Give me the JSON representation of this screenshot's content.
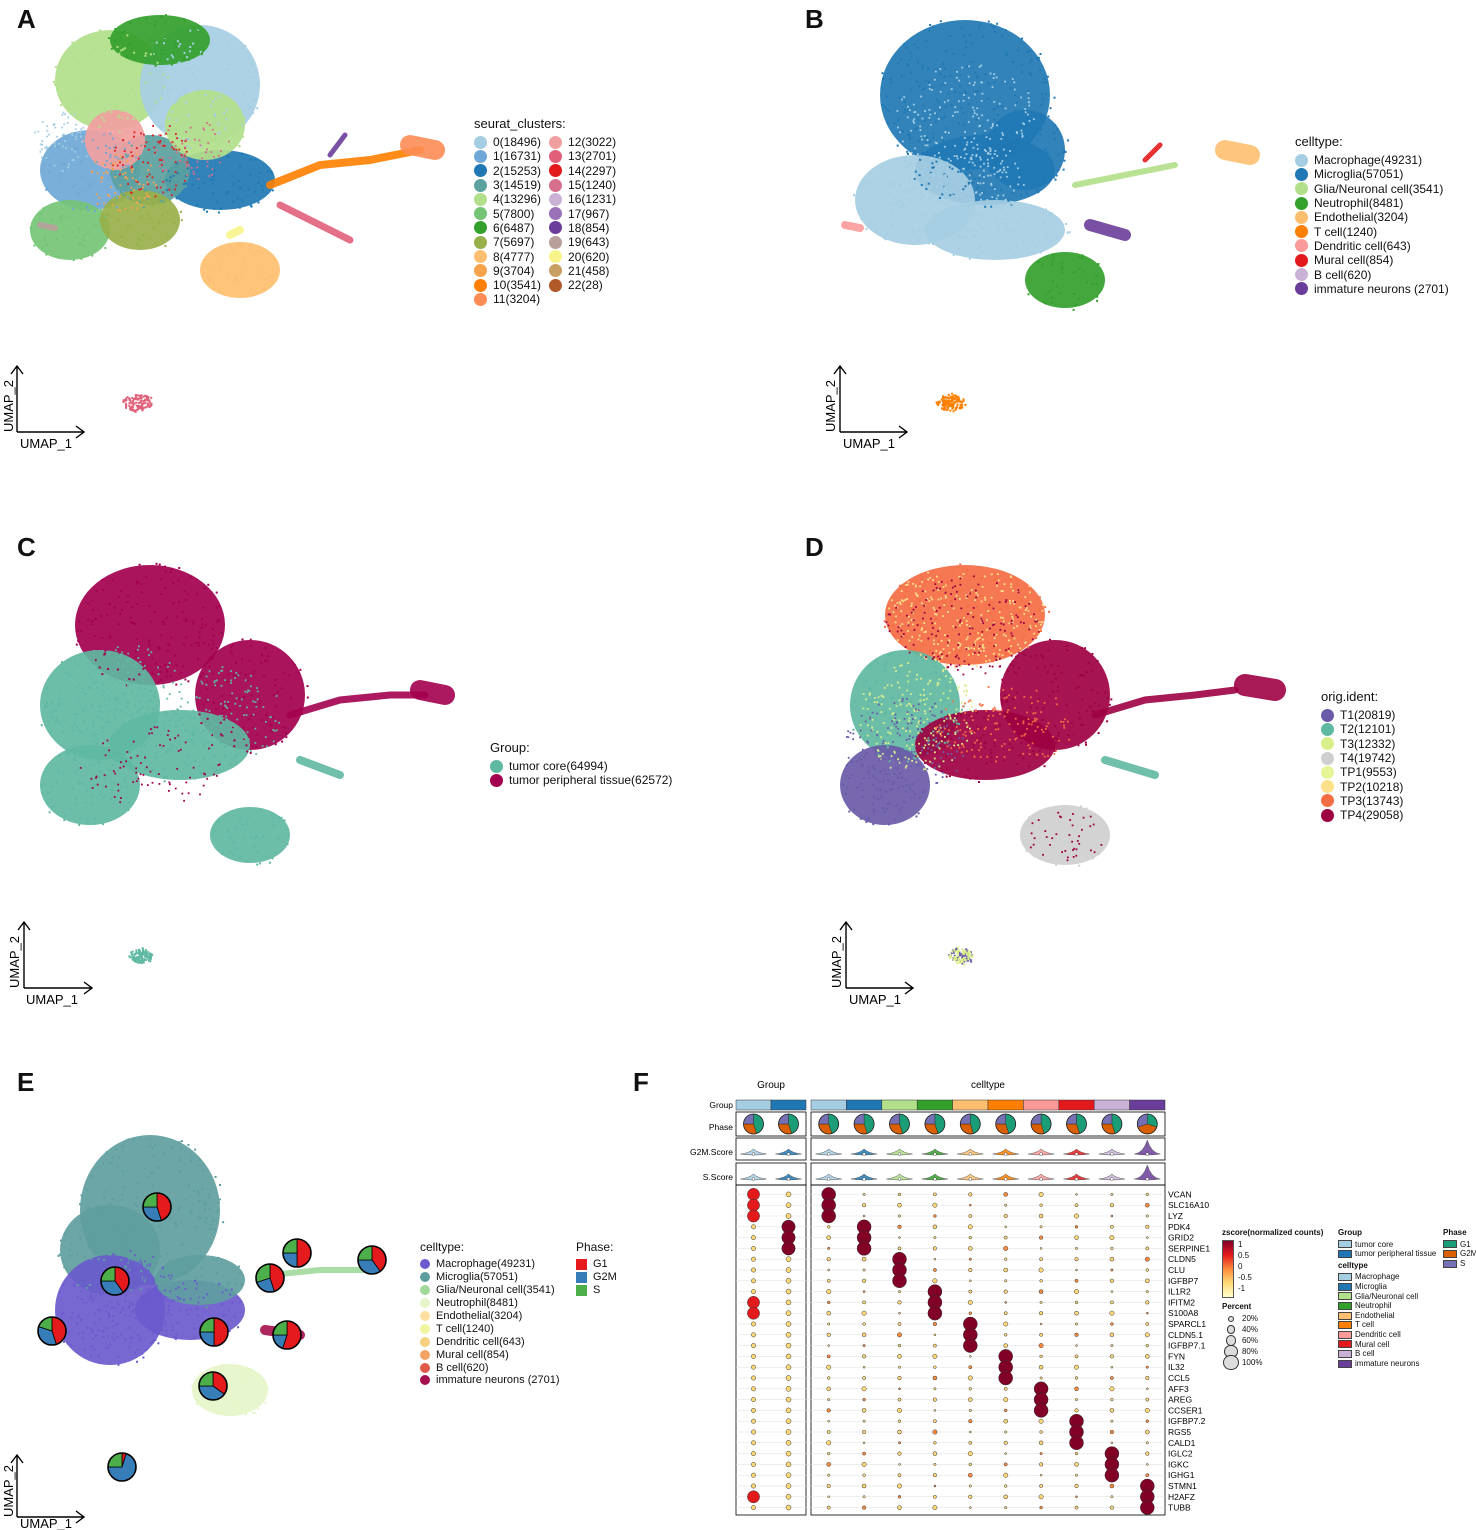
{
  "panels": {
    "A": "A",
    "B": "B",
    "C": "C",
    "D": "D",
    "E": "E",
    "F": "F"
  },
  "axes": {
    "x": "UMAP_1",
    "y": "UMAP_2"
  },
  "colors": {
    "celltypeB": [
      "#a6cee3",
      "#1f78b4",
      "#b2df8a",
      "#33a02c",
      "#fdbf6f",
      "#ff7f00",
      "#fb9a99",
      "#e31a1c",
      "#cab2d6",
      "#6a3d9a"
    ],
    "clusters": [
      "#a6cee3",
      "#6fa8d6",
      "#1f78b4",
      "#5aa1a0",
      "#b2df8a",
      "#74c476",
      "#33a02c",
      "#98b04a",
      "#fdbf6f",
      "#f9a24c",
      "#ff7f00",
      "#fd8d55",
      "#f1a0a0",
      "#e0607a",
      "#e31a1c",
      "#d66f8b",
      "#cab2d6",
      "#9a71b6",
      "#6a3d9a",
      "#b8a09a",
      "#f7f48a",
      "#c9a063",
      "#b15928"
    ],
    "group": [
      "#5fb8a2",
      "#a3004f"
    ],
    "orig": [
      "#6a5aa8",
      "#5fb8a2",
      "#d9ef8b",
      "#cfcfcf",
      "#e6f598",
      "#fee08b",
      "#f46d43",
      "#9e0142"
    ],
    "celltypeE": [
      "#6a5acd",
      "#5f9ea0",
      "#a1d99b",
      "#e6f5c9",
      "#fde0a0",
      "#f0f4a0",
      "#f5d080",
      "#f4a462",
      "#e05a47",
      "#a50f4d"
    ],
    "phase": [
      "#e41a1c",
      "#377eb8",
      "#4daf4a"
    ],
    "groupF": [
      "#a6cee3",
      "#1f78b4"
    ],
    "zscale": [
      "#ffffcc",
      "#fed976",
      "#fd8d3c",
      "#e31a1c",
      "#800026"
    ]
  },
  "legendA": {
    "title": "seurat_clusters:",
    "items": [
      "0(18496)",
      "1(16731)",
      "2(15253)",
      "3(14519)",
      "4(13296)",
      "5(7800)",
      "6(6487)",
      "7(5697)",
      "8(4777)",
      "9(3704)",
      "10(3541)",
      "11(3204)",
      "12(3022)",
      "13(2701)",
      "14(2297)",
      "15(1240)",
      "16(1231)",
      "17(967)",
      "18(854)",
      "19(643)",
      "20(620)",
      "21(458)",
      "22(28)"
    ]
  },
  "legendB": {
    "title": "celltype:",
    "items": [
      "Macrophage(49231)",
      "Microglia(57051)",
      "Glia/Neuronal cell(3541)",
      "Neutrophil(8481)",
      "Endothelial(3204)",
      "T cell(1240)",
      "Dendritic cell(643)",
      "Mural cell(854)",
      "B cell(620)",
      " immature neurons (2701)"
    ]
  },
  "legendC": {
    "title": "Group:",
    "items": [
      "tumor core(64994)",
      "tumor peripheral tissue(62572)"
    ]
  },
  "legendD": {
    "title": "orig.ident:",
    "items": [
      "T1(20819)",
      "T2(12101)",
      "T3(12332)",
      "T4(19742)",
      "TP1(9553)",
      "TP2(10218)",
      "TP3(13743)",
      "TP4(29058)"
    ]
  },
  "legendE": {
    "title": "celltype:",
    "items": [
      "Macrophage(49231)",
      "Microglia(57051)",
      "Glia/Neuronal cell(3541)",
      "Neutrophil(8481)",
      "Endothelial(3204)",
      "T cell(1240)",
      "Dendritic cell(643)",
      "Mural cell(854)",
      "B cell(620)",
      " immature neurons (2701)"
    ]
  },
  "legendPhase": {
    "title": "Phase:",
    "items": [
      "G1",
      "G2M",
      "S"
    ]
  },
  "chart_data": [
    {
      "type": "scatter",
      "panel": "A",
      "title": "",
      "xlabel": "UMAP_1",
      "ylabel": "UMAP_2",
      "legend_title": "seurat_clusters:",
      "categories": [
        "0",
        "1",
        "2",
        "3",
        "4",
        "5",
        "6",
        "7",
        "8",
        "9",
        "10",
        "11",
        "12",
        "13",
        "14",
        "15",
        "16",
        "17",
        "18",
        "19",
        "20",
        "21",
        "22"
      ],
      "cell_counts": [
        18496,
        16731,
        15253,
        14519,
        13296,
        7800,
        6487,
        5697,
        4777,
        3704,
        3541,
        3204,
        3022,
        2701,
        2297,
        1240,
        1231,
        967,
        854,
        643,
        620,
        458,
        28
      ]
    },
    {
      "type": "scatter",
      "panel": "B",
      "xlabel": "UMAP_1",
      "ylabel": "UMAP_2",
      "legend_title": "celltype:",
      "categories": [
        "Macrophage",
        "Microglia",
        "Glia/Neuronal cell",
        "Neutrophil",
        "Endothelial",
        "T cell",
        "Dendritic cell",
        "Mural cell",
        "B cell",
        "immature neurons"
      ],
      "cell_counts": [
        49231,
        57051,
        3541,
        8481,
        3204,
        1240,
        643,
        854,
        620,
        2701
      ]
    },
    {
      "type": "scatter",
      "panel": "C",
      "xlabel": "UMAP_1",
      "ylabel": "UMAP_2",
      "legend_title": "Group:",
      "categories": [
        "tumor core",
        "tumor peripheral tissue"
      ],
      "cell_counts": [
        64994,
        62572
      ]
    },
    {
      "type": "scatter",
      "panel": "D",
      "xlabel": "UMAP_1",
      "ylabel": "UMAP_2",
      "legend_title": "orig.ident:",
      "categories": [
        "T1",
        "T2",
        "T3",
        "T4",
        "TP1",
        "TP2",
        "TP3",
        "TP4"
      ],
      "cell_counts": [
        20819,
        12101,
        12332,
        19742,
        9553,
        10218,
        13743,
        29058
      ]
    },
    {
      "type": "scatter",
      "panel": "E",
      "xlabel": "UMAP_1",
      "ylabel": "UMAP_2",
      "legend_title": "celltype:",
      "phase_legend": [
        "G1",
        "G2M",
        "S"
      ],
      "pies": [
        {
          "celltype": "Microglia",
          "G1": 0.45,
          "G2M": 0.3,
          "S": 0.25
        },
        {
          "celltype": "Macrophage",
          "G1": 0.4,
          "G2M": 0.35,
          "S": 0.25
        },
        {
          "celltype": "Glia/Neuronal cell",
          "G1": 0.5,
          "G2M": 0.25,
          "S": 0.25
        },
        {
          "celltype": "Endothelial",
          "G1": 0.45,
          "G2M": 0.25,
          "S": 0.3
        },
        {
          "celltype": "T cell",
          "G1": 0.4,
          "G2M": 0.35,
          "S": 0.25
        },
        {
          "celltype": "Dendritic cell",
          "G1": 0.5,
          "G2M": 0.25,
          "S": 0.25
        },
        {
          "celltype": "Mural cell",
          "G1": 0.55,
          "G2M": 0.2,
          "S": 0.25
        },
        {
          "celltype": "Neutrophil",
          "G1": 0.45,
          "G2M": 0.35,
          "S": 0.2
        },
        {
          "celltype": "B cell",
          "G1": 0.05,
          "G2M": 0.7,
          "S": 0.25
        },
        {
          "celltype": "immature neurons",
          "G1": 0.35,
          "G2M": 0.4,
          "S": 0.25
        }
      ]
    },
    {
      "type": "heatmap",
      "panel": "F",
      "group_header": "Group",
      "celltype_header": "celltype",
      "row_labels": [
        "Group",
        "Phase",
        "G2M.Score",
        "S.Score"
      ],
      "group_columns": [
        "tumor core",
        "tumor peripheral tissue"
      ],
      "celltype_columns": [
        "Macrophage",
        "Microglia",
        "Glia/Neuronal cell",
        "Neutrophil",
        "Endothelial",
        "T cell",
        "Dendritic cell",
        "Mural cell",
        "B cell",
        "immature neurons"
      ],
      "genes": [
        "VCAN",
        "SLC16A10",
        "LYZ",
        "PDK4",
        "GRID2",
        "SERPINE1",
        "CLDN5",
        "CLU",
        "IGFBP7",
        "IL1R2",
        "IFITM2",
        "S100A8",
        "SPARCL1",
        "CLDN5.1",
        "IGFBP7.1",
        "FYN",
        "IL32",
        "CCL5",
        "AFF3",
        "AREG",
        "CCSER1",
        "IGFBP7.2",
        "RGS5",
        "CALD1",
        "IGLC2",
        "IGKC",
        "IGHG1",
        "STMN1",
        "H2AFZ",
        "TUBB"
      ],
      "z_legend_title": "zscore(normalized counts)",
      "z_ticks": [
        "1",
        "0.5",
        "0",
        "-0.5",
        "-1"
      ],
      "pct_legend_title": "Percent",
      "pct_ticks": [
        "20%",
        "40%",
        "60%",
        "80%",
        "100%"
      ],
      "legend_group_title": "Group",
      "legend_group_items": [
        "tumor core",
        "tumor peripheral tissue"
      ],
      "legend_celltype_title": "celltype",
      "legend_celltype_items": [
        "Macrophage",
        "Microglia",
        "Glia/Neuronal cell",
        "Neutrophil",
        "Endothelial",
        "T cell",
        "Dendritic cell",
        "Mural cell",
        "B cell",
        "immature neurons"
      ],
      "legend_phase_title": "Phase",
      "legend_phase_items": [
        "G1",
        "G2M",
        "S"
      ],
      "phase_colors": [
        "#1b9e77",
        "#d95f02",
        "#7570b3"
      ],
      "highlights": {
        "group_tumor_core": [
          "VCAN",
          "SLC16A10",
          "LYZ",
          "IFITM2",
          "S100A8",
          "H2AFZ"
        ],
        "group_peripheral": [
          "PDK4",
          "GRID2",
          "SERPINE1"
        ],
        "Macrophage": [
          "SLC16A10",
          "LYZ",
          "VCAN"
        ],
        "Microglia": [
          "PDK4",
          "GRID2",
          "SERPINE1"
        ],
        "Glia/Neuronal cell": [
          "CLDN5",
          "CLU",
          "IGFBP7"
        ],
        "Neutrophil": [
          "IL1R2",
          "IFITM2",
          "S100A8"
        ],
        "Endothelial": [
          "SPARCL1",
          "CLDN5.1",
          "IGFBP7.1"
        ],
        "T cell": [
          "FYN",
          "IL32",
          "CCL5"
        ],
        "Dendritic cell": [
          "AFF3",
          "AREG",
          "CCSER1"
        ],
        "Mural cell": [
          "IGFBP7.2",
          "RGS5",
          "CALD1"
        ],
        "B cell": [
          "IGLC2",
          "IGKC",
          "IGHG1"
        ],
        "immature neurons": [
          "STMN1",
          "H2AFZ",
          "TUBB"
        ]
      }
    }
  ]
}
